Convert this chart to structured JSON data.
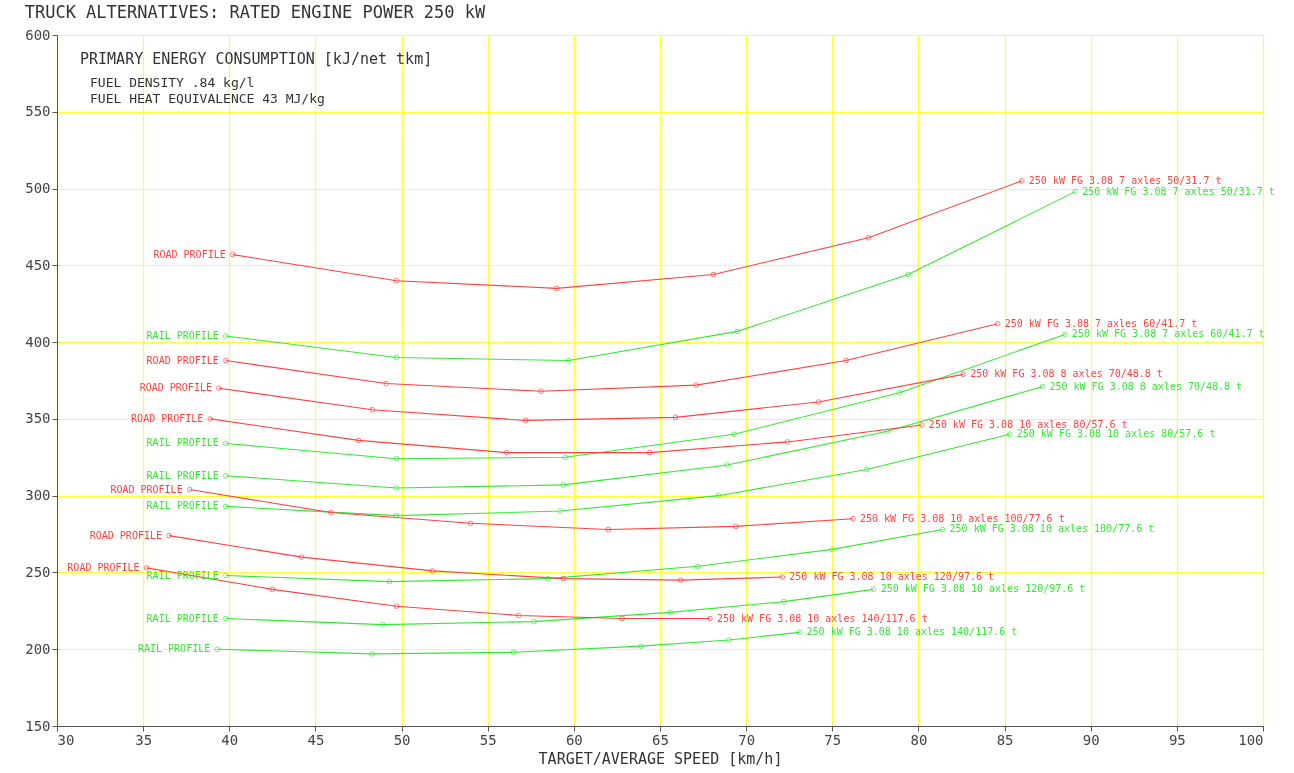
{
  "chart_data": {
    "type": "line",
    "title": "TRUCK ALTERNATIVES: RATED ENGINE POWER 250 kW",
    "xlabel": "TARGET/AVERAGE SPEED [km/h]",
    "xlim": [
      30,
      100
    ],
    "xticks": [
      30,
      35,
      40,
      45,
      50,
      55,
      60,
      65,
      70,
      75,
      80,
      85,
      90,
      95,
      100
    ],
    "ylim": [
      150,
      600
    ],
    "yticks": [
      150,
      200,
      250,
      300,
      350,
      400,
      450,
      500,
      550,
      600
    ],
    "grid": true,
    "marker": "circle",
    "line_style": "solid",
    "series": [
      {
        "name": "250 kW FG 3.08  7 axles 50/31.7 t",
        "color": "#ff4040",
        "x": [
          40.2,
          49.7,
          59.0,
          68.1,
          77.1,
          86.0
        ],
        "values": [
          457,
          440,
          435,
          444,
          468,
          505
        ]
      },
      {
        "name": "250 kW FG 3.08  7 axles 50/31.7 t",
        "color": "#33e833",
        "x": [
          39.8,
          49.7,
          59.7,
          69.5,
          79.4,
          89.1
        ],
        "values": [
          404,
          390,
          388,
          407,
          444,
          498
        ]
      },
      {
        "name": "250 kW FG 3.08  7 axles 60/41.7 t",
        "color": "#ff4040",
        "x": [
          39.8,
          49.1,
          58.1,
          67.1,
          75.8,
          84.6
        ],
        "values": [
          388,
          373,
          368,
          372,
          388,
          412
        ]
      },
      {
        "name": "250 kW FG 3.08  7 axles 60/41.7 t",
        "color": "#33e833",
        "x": [
          39.8,
          49.7,
          59.5,
          69.3,
          78.9,
          88.5
        ],
        "values": [
          334,
          324,
          325,
          340,
          367,
          405
        ]
      },
      {
        "name": "250 kW FG 3.08  8 axles 70/48.8 t",
        "color": "#ff4040",
        "x": [
          39.4,
          48.3,
          57.2,
          65.9,
          74.2,
          82.6
        ],
        "values": [
          370,
          356,
          349,
          351,
          361,
          379
        ]
      },
      {
        "name": "250 kW FG 3.08  8 axles 70/48.8 t",
        "color": "#33e833",
        "x": [
          39.8,
          49.7,
          59.4,
          68.9,
          78.2,
          87.2
        ],
        "values": [
          313,
          305,
          307,
          320,
          342,
          371
        ]
      },
      {
        "name": "250 kW FG 3.08  10 axles 80/57.6 t",
        "color": "#ff4040",
        "x": [
          38.9,
          47.5,
          56.1,
          64.4,
          72.4,
          80.2
        ],
        "values": [
          350,
          336,
          328,
          328,
          335,
          346
        ]
      },
      {
        "name": "250 kW FG 3.08  10 axles 80/57.6 t",
        "color": "#33e833",
        "x": [
          39.8,
          49.7,
          59.2,
          68.4,
          77.0,
          85.3
        ],
        "values": [
          293,
          287,
          290,
          300,
          317,
          340
        ]
      },
      {
        "name": "250 kW FG 3.08  10 axles 100/77.6 t",
        "color": "#ff4040",
        "x": [
          37.7,
          45.9,
          54.0,
          62.0,
          69.4,
          76.2
        ],
        "values": [
          304,
          289,
          282,
          278,
          280,
          285
        ]
      },
      {
        "name": "250 kW FG 3.08  10 axles 100/77.6 t",
        "color": "#33e833",
        "x": [
          39.8,
          49.3,
          58.5,
          67.2,
          75.0,
          81.4
        ],
        "values": [
          248,
          244,
          246,
          254,
          265,
          278
        ]
      },
      {
        "name": "250 kW FG 3.08  10 axles 120/97.6 t",
        "color": "#ff4040",
        "x": [
          36.5,
          44.2,
          51.8,
          59.4,
          66.2,
          72.1
        ],
        "values": [
          274,
          260,
          251,
          246,
          245,
          247
        ]
      },
      {
        "name": "250 kW FG 3.08  10 axles 120/97.6 t",
        "color": "#33e833",
        "x": [
          39.8,
          48.9,
          57.7,
          65.6,
          72.2,
          77.4
        ],
        "values": [
          220,
          216,
          218,
          224,
          231,
          239
        ]
      },
      {
        "name": "250 kW FG 3.08  10 axles 140/117.6 t",
        "color": "#ff4040",
        "x": [
          35.2,
          42.5,
          49.7,
          56.8,
          62.8,
          67.9
        ],
        "values": [
          253,
          239,
          228,
          222,
          220,
          220
        ]
      },
      {
        "name": "250 kW FG 3.08  10 axles 140/117.6 t",
        "color": "#33e833",
        "x": [
          39.3,
          48.3,
          56.5,
          63.9,
          69.0,
          73.1
        ],
        "values": [
          200,
          197,
          198,
          202,
          206,
          211
        ]
      }
    ],
    "annotations": [
      "PRIMARY ENERGY CONSUMPTION [kJ/net tkm]",
      "FUEL DENSITY .84 kg/l",
      "FUEL HEAT EQUIVALENCE 43 MJ/kg",
      {
        "text": "ROAD PROFILE",
        "x": 40.2,
        "y": 457
      },
      {
        "text": "RAIL PROFILE",
        "x": 39.8,
        "y": 404
      },
      {
        "text": "ROAD PROFILE",
        "x": 39.8,
        "y": 388
      },
      {
        "text": "RAIL PROFILE",
        "x": 39.8,
        "y": 334
      },
      {
        "text": "ROAD PROFILE",
        "x": 39.4,
        "y": 370
      },
      {
        "text": "RAIL PROFILE",
        "x": 39.8,
        "y": 313
      },
      {
        "text": "ROAD PROFILE",
        "x": 38.9,
        "y": 350
      },
      {
        "text": "RAIL PROFILE",
        "x": 39.8,
        "y": 293
      },
      {
        "text": "ROAD PROFILE",
        "x": 37.7,
        "y": 304
      },
      {
        "text": "RAIL PROFILE",
        "x": 39.8,
        "y": 248
      },
      {
        "text": "ROAD PROFILE",
        "x": 36.5,
        "y": 274
      },
      {
        "text": "RAIL PROFILE",
        "x": 39.8,
        "y": 220
      },
      {
        "text": "ROAD PROFILE",
        "x": 35.2,
        "y": 253
      },
      {
        "text": "RAIL PROFILE",
        "x": 39.3,
        "y": 200
      }
    ]
  }
}
